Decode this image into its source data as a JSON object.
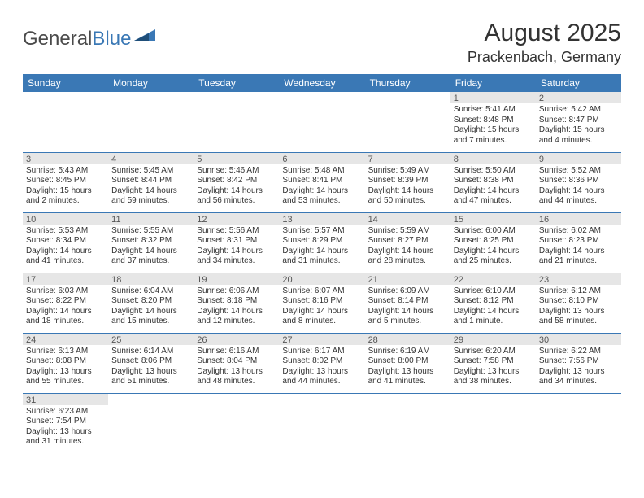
{
  "logo": {
    "text1": "General",
    "text2": "Blue"
  },
  "header": {
    "title": "August 2025",
    "location": "Prackenbach, Germany"
  },
  "colors": {
    "header_bg": "#3a78b5",
    "header_fg": "#ffffff",
    "daynum_band": "#e6e6e6",
    "row_border": "#3a78b5",
    "page_bg": "#ffffff",
    "text": "#333333"
  },
  "calendar": {
    "type": "table",
    "days_of_week": [
      "Sunday",
      "Monday",
      "Tuesday",
      "Wednesday",
      "Thursday",
      "Friday",
      "Saturday"
    ],
    "weeks": [
      [
        null,
        null,
        null,
        null,
        null,
        {
          "n": "1",
          "sr": "Sunrise: 5:41 AM",
          "ss": "Sunset: 8:48 PM",
          "d1": "Daylight: 15 hours",
          "d2": "and 7 minutes."
        },
        {
          "n": "2",
          "sr": "Sunrise: 5:42 AM",
          "ss": "Sunset: 8:47 PM",
          "d1": "Daylight: 15 hours",
          "d2": "and 4 minutes."
        }
      ],
      [
        {
          "n": "3",
          "sr": "Sunrise: 5:43 AM",
          "ss": "Sunset: 8:45 PM",
          "d1": "Daylight: 15 hours",
          "d2": "and 2 minutes."
        },
        {
          "n": "4",
          "sr": "Sunrise: 5:45 AM",
          "ss": "Sunset: 8:44 PM",
          "d1": "Daylight: 14 hours",
          "d2": "and 59 minutes."
        },
        {
          "n": "5",
          "sr": "Sunrise: 5:46 AM",
          "ss": "Sunset: 8:42 PM",
          "d1": "Daylight: 14 hours",
          "d2": "and 56 minutes."
        },
        {
          "n": "6",
          "sr": "Sunrise: 5:48 AM",
          "ss": "Sunset: 8:41 PM",
          "d1": "Daylight: 14 hours",
          "d2": "and 53 minutes."
        },
        {
          "n": "7",
          "sr": "Sunrise: 5:49 AM",
          "ss": "Sunset: 8:39 PM",
          "d1": "Daylight: 14 hours",
          "d2": "and 50 minutes."
        },
        {
          "n": "8",
          "sr": "Sunrise: 5:50 AM",
          "ss": "Sunset: 8:38 PM",
          "d1": "Daylight: 14 hours",
          "d2": "and 47 minutes."
        },
        {
          "n": "9",
          "sr": "Sunrise: 5:52 AM",
          "ss": "Sunset: 8:36 PM",
          "d1": "Daylight: 14 hours",
          "d2": "and 44 minutes."
        }
      ],
      [
        {
          "n": "10",
          "sr": "Sunrise: 5:53 AM",
          "ss": "Sunset: 8:34 PM",
          "d1": "Daylight: 14 hours",
          "d2": "and 41 minutes."
        },
        {
          "n": "11",
          "sr": "Sunrise: 5:55 AM",
          "ss": "Sunset: 8:32 PM",
          "d1": "Daylight: 14 hours",
          "d2": "and 37 minutes."
        },
        {
          "n": "12",
          "sr": "Sunrise: 5:56 AM",
          "ss": "Sunset: 8:31 PM",
          "d1": "Daylight: 14 hours",
          "d2": "and 34 minutes."
        },
        {
          "n": "13",
          "sr": "Sunrise: 5:57 AM",
          "ss": "Sunset: 8:29 PM",
          "d1": "Daylight: 14 hours",
          "d2": "and 31 minutes."
        },
        {
          "n": "14",
          "sr": "Sunrise: 5:59 AM",
          "ss": "Sunset: 8:27 PM",
          "d1": "Daylight: 14 hours",
          "d2": "and 28 minutes."
        },
        {
          "n": "15",
          "sr": "Sunrise: 6:00 AM",
          "ss": "Sunset: 8:25 PM",
          "d1": "Daylight: 14 hours",
          "d2": "and 25 minutes."
        },
        {
          "n": "16",
          "sr": "Sunrise: 6:02 AM",
          "ss": "Sunset: 8:23 PM",
          "d1": "Daylight: 14 hours",
          "d2": "and 21 minutes."
        }
      ],
      [
        {
          "n": "17",
          "sr": "Sunrise: 6:03 AM",
          "ss": "Sunset: 8:22 PM",
          "d1": "Daylight: 14 hours",
          "d2": "and 18 minutes."
        },
        {
          "n": "18",
          "sr": "Sunrise: 6:04 AM",
          "ss": "Sunset: 8:20 PM",
          "d1": "Daylight: 14 hours",
          "d2": "and 15 minutes."
        },
        {
          "n": "19",
          "sr": "Sunrise: 6:06 AM",
          "ss": "Sunset: 8:18 PM",
          "d1": "Daylight: 14 hours",
          "d2": "and 12 minutes."
        },
        {
          "n": "20",
          "sr": "Sunrise: 6:07 AM",
          "ss": "Sunset: 8:16 PM",
          "d1": "Daylight: 14 hours",
          "d2": "and 8 minutes."
        },
        {
          "n": "21",
          "sr": "Sunrise: 6:09 AM",
          "ss": "Sunset: 8:14 PM",
          "d1": "Daylight: 14 hours",
          "d2": "and 5 minutes."
        },
        {
          "n": "22",
          "sr": "Sunrise: 6:10 AM",
          "ss": "Sunset: 8:12 PM",
          "d1": "Daylight: 14 hours",
          "d2": "and 1 minute."
        },
        {
          "n": "23",
          "sr": "Sunrise: 6:12 AM",
          "ss": "Sunset: 8:10 PM",
          "d1": "Daylight: 13 hours",
          "d2": "and 58 minutes."
        }
      ],
      [
        {
          "n": "24",
          "sr": "Sunrise: 6:13 AM",
          "ss": "Sunset: 8:08 PM",
          "d1": "Daylight: 13 hours",
          "d2": "and 55 minutes."
        },
        {
          "n": "25",
          "sr": "Sunrise: 6:14 AM",
          "ss": "Sunset: 8:06 PM",
          "d1": "Daylight: 13 hours",
          "d2": "and 51 minutes."
        },
        {
          "n": "26",
          "sr": "Sunrise: 6:16 AM",
          "ss": "Sunset: 8:04 PM",
          "d1": "Daylight: 13 hours",
          "d2": "and 48 minutes."
        },
        {
          "n": "27",
          "sr": "Sunrise: 6:17 AM",
          "ss": "Sunset: 8:02 PM",
          "d1": "Daylight: 13 hours",
          "d2": "and 44 minutes."
        },
        {
          "n": "28",
          "sr": "Sunrise: 6:19 AM",
          "ss": "Sunset: 8:00 PM",
          "d1": "Daylight: 13 hours",
          "d2": "and 41 minutes."
        },
        {
          "n": "29",
          "sr": "Sunrise: 6:20 AM",
          "ss": "Sunset: 7:58 PM",
          "d1": "Daylight: 13 hours",
          "d2": "and 38 minutes."
        },
        {
          "n": "30",
          "sr": "Sunrise: 6:22 AM",
          "ss": "Sunset: 7:56 PM",
          "d1": "Daylight: 13 hours",
          "d2": "and 34 minutes."
        }
      ],
      [
        {
          "n": "31",
          "sr": "Sunrise: 6:23 AM",
          "ss": "Sunset: 7:54 PM",
          "d1": "Daylight: 13 hours",
          "d2": "and 31 minutes."
        },
        null,
        null,
        null,
        null,
        null,
        null
      ]
    ]
  }
}
